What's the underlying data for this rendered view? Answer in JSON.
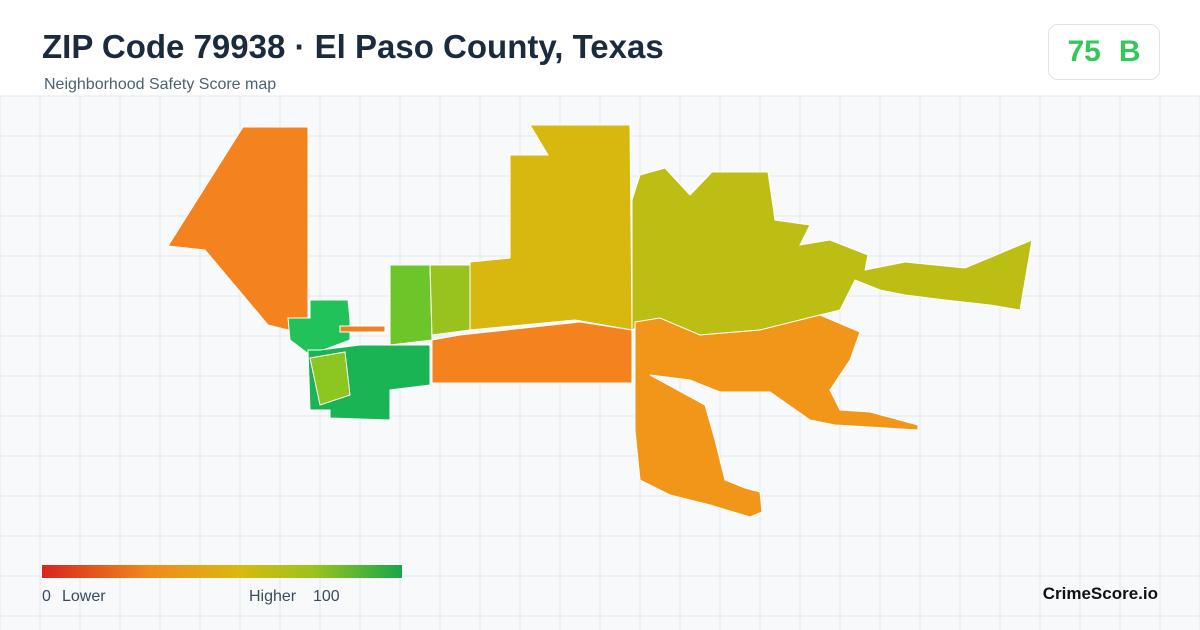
{
  "header": {
    "title": "ZIP Code 79938 · El Paso County, Texas",
    "subtitle": "Neighborhood Safety Score map"
  },
  "score": {
    "value": 75,
    "grade": "B"
  },
  "legend": {
    "min": 0,
    "min_label": "Lower",
    "max_label": "Higher",
    "max": 100
  },
  "brand": "CrimeScore.io"
}
